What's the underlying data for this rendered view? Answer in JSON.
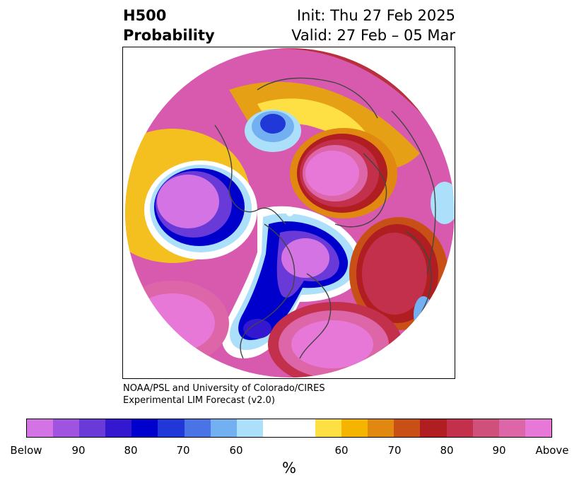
{
  "header": {
    "variable": "H500",
    "product": "Probability",
    "init": "Init: Thu 27 Feb 2025",
    "valid": "Valid: 27 Feb – 05 Mar"
  },
  "credit": {
    "line1": "NOAA/PSL and University of Colorado/CIRES",
    "line2": "Experimental LIM Forecast (v2.0)"
  },
  "colorbar": {
    "unit": "%",
    "colors": [
      "#d474e4",
      "#a052e0",
      "#6a3ad8",
      "#3418d0",
      "#0000cc",
      "#2038d8",
      "#4a74e6",
      "#72b0f2",
      "#ace0fa",
      "#ffffff",
      "#ffffff",
      "#ffe044",
      "#f4b400",
      "#e08810",
      "#c85016",
      "#b01e22",
      "#c2304c",
      "#d0507c",
      "#dc66a8",
      "#e878d8"
    ],
    "ticks": [
      {
        "label": "Below"
      },
      {
        "label": "90"
      },
      {
        "label": "80"
      },
      {
        "label": "70"
      },
      {
        "label": "60"
      },
      {
        "label": "60"
      },
      {
        "label": "70"
      },
      {
        "label": "80"
      },
      {
        "label": "90"
      },
      {
        "label": "Above"
      }
    ]
  },
  "map": {
    "projection": "polar stereographic, North Pole",
    "regions": [
      {
        "name": "north-pacific",
        "anomaly": "below",
        "level": "Below"
      },
      {
        "name": "central-canada",
        "anomaly": "below",
        "level": "Below"
      },
      {
        "name": "greenland",
        "anomaly": "below",
        "level": "80"
      },
      {
        "name": "southwest-us",
        "anomaly": "below",
        "level": "90"
      },
      {
        "name": "siberia",
        "anomaly": "above",
        "level": "Above"
      },
      {
        "name": "eastern-pacific",
        "anomaly": "above",
        "level": "Above"
      },
      {
        "name": "western-atlantic",
        "anomaly": "above",
        "level": "Above"
      },
      {
        "name": "europe",
        "anomaly": "above",
        "level": "90"
      },
      {
        "name": "eastern-atlantic",
        "anomaly": "above",
        "level": "90"
      }
    ]
  }
}
